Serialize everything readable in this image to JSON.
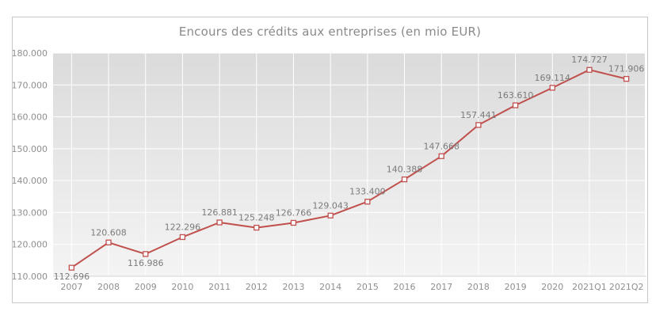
{
  "window": {
    "background": "#ffffff"
  },
  "chart": {
    "title": "Encours des crédits aux entreprises (en mio EUR)",
    "frame_border_color": "#c9c9c9",
    "line_color": "#c0504d",
    "marker_fill": "#ffffff",
    "plot_bg_top": "#dbdbdb",
    "plot_bg_bottom": "#f4f4f4",
    "grid_color": "#ffffff",
    "plot_bottom_border_color": "#d5d5d5"
  },
  "chart_data": {
    "type": "line",
    "title": "Encours des crédits aux entreprises (en mio EUR)",
    "categories": [
      "2007",
      "2008",
      "2009",
      "2010",
      "2011",
      "2012",
      "2013",
      "2014",
      "2015",
      "2016",
      "2017",
      "2018",
      "2019",
      "2020",
      "2021Q1",
      "2021Q2"
    ],
    "values": [
      112696,
      120608,
      116986,
      122296,
      126881,
      125248,
      126766,
      129043,
      133400,
      140388,
      147668,
      157441,
      163610,
      169114,
      174727,
      171906
    ],
    "point_labels": [
      "112.696",
      "120.608",
      "116.986",
      "122.296",
      "126.881",
      "125.248",
      "126.766",
      "129.043",
      "133.400",
      "140.388",
      "147.668",
      "157.441",
      "163.610",
      "169.114",
      "174.727",
      "171.906"
    ],
    "point_label_positions": [
      "below",
      "above",
      "below",
      "above",
      "above",
      "above",
      "above",
      "above",
      "above",
      "above",
      "above",
      "above",
      "above",
      "above",
      "above",
      "above"
    ],
    "xlabel": "",
    "ylabel": "",
    "ylim": [
      110000,
      180000
    ],
    "y_ticks": [
      {
        "value": 110000,
        "label": "110.000"
      },
      {
        "value": 120000,
        "label": "120.000"
      },
      {
        "value": 130000,
        "label": "130.000"
      },
      {
        "value": 140000,
        "label": "140.000"
      },
      {
        "value": 150000,
        "label": "150.000"
      },
      {
        "value": 160000,
        "label": "160.000"
      },
      {
        "value": 170000,
        "label": "170.000"
      },
      {
        "value": 180000,
        "label": "180.000"
      }
    ],
    "grid": true,
    "legend": "none"
  }
}
